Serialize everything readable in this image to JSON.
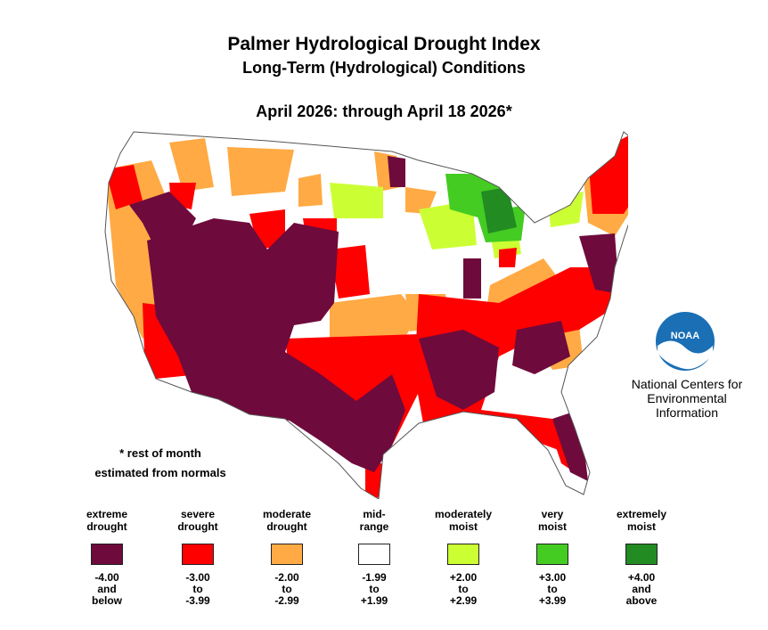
{
  "title": "Palmer Hydrological Drought Index",
  "subtitle": "Long-Term (Hydrological) Conditions",
  "period": "April 2026: through April 18 2026*",
  "note_line1": "* rest of month",
  "note_line2": "estimated from normals",
  "logo_text": "NOAA",
  "org": {
    "line1": "National Centers for",
    "line2": "Environmental",
    "line3": "Information"
  },
  "colors": {
    "extreme_drought": "#6e0a3c",
    "severe_drought": "#ff0000",
    "moderate_drought": "#ffaa44",
    "mid_range": "#ffffff",
    "moderately_moist": "#ccff33",
    "very_moist": "#44cc22",
    "extremely_moist": "#228b22"
  },
  "legend": [
    {
      "l1": "extreme",
      "l2": "drought",
      "color": "#6e0a3c",
      "r1": "-4.00",
      "r2": "and",
      "r3": "below"
    },
    {
      "l1": "severe",
      "l2": "drought",
      "color": "#ff0000",
      "r1": "-3.00",
      "r2": "to",
      "r3": "-3.99"
    },
    {
      "l1": "moderate",
      "l2": "drought",
      "color": "#ffaa44",
      "r1": "-2.00",
      "r2": "to",
      "r3": "-2.99"
    },
    {
      "l1": "mid-",
      "l2": "range",
      "color": "#ffffff",
      "r1": "-1.99",
      "r2": "to",
      "r3": "+1.99"
    },
    {
      "l1": "moderately",
      "l2": "moist",
      "color": "#ccff33",
      "r1": "+2.00",
      "r2": "to",
      "r3": "+2.99"
    },
    {
      "l1": "very",
      "l2": "moist",
      "color": "#44cc22",
      "r1": "+3.00",
      "r2": "to",
      "r3": "+3.99"
    },
    {
      "l1": "extremely",
      "l2": "moist",
      "color": "#228b22",
      "r1": "+4.00",
      "r2": "and",
      "r3": "above"
    }
  ]
}
